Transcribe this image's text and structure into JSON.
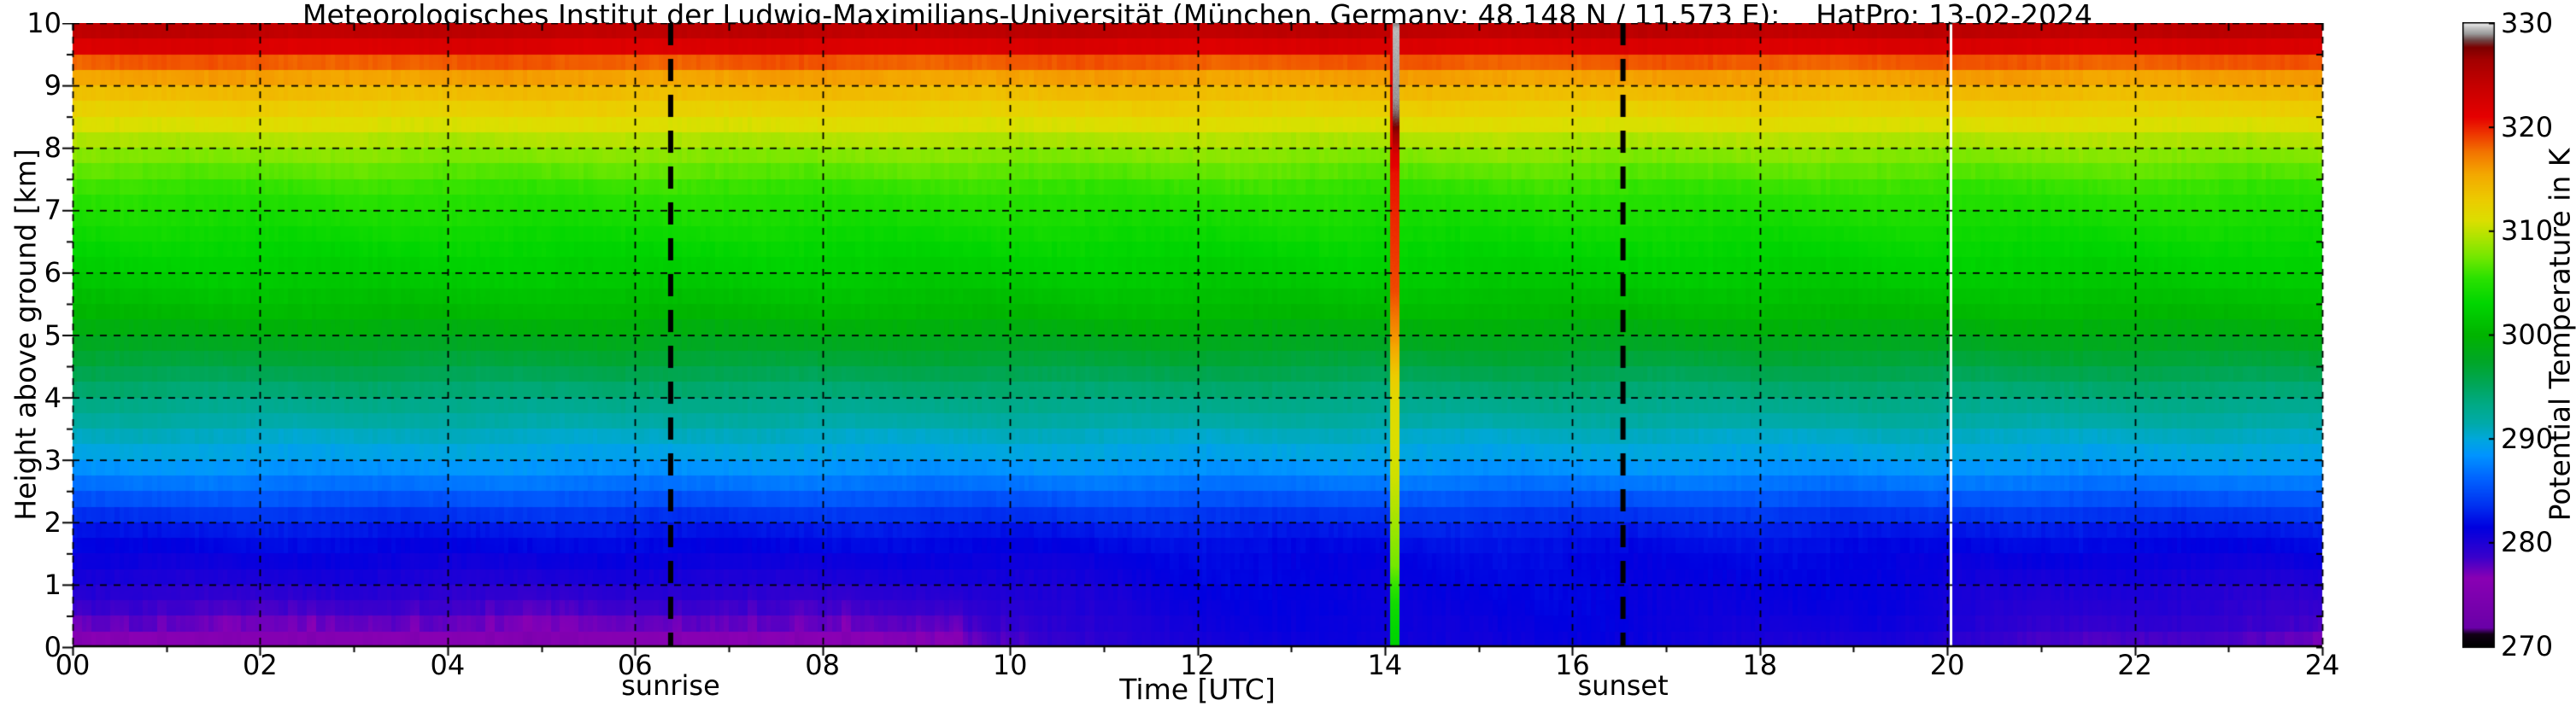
{
  "background": "#ffffff",
  "chart_data": {
    "type": "heatmap",
    "title": "Meteorologisches Institut der Ludwig-Maximilians-Universität (München, Germany; 48.148 N / 11.573 E):    HatPro: 13-02-2024",
    "xlabel": "Time [UTC]",
    "ylabel": "Height above ground [km]",
    "colorbar_label": "Potential Temperature in K",
    "x_range_hours": [
      0,
      24
    ],
    "x_tick_labels": [
      "00",
      "02",
      "04",
      "06",
      "08",
      "10",
      "12",
      "14",
      "16",
      "18",
      "20",
      "22",
      "24"
    ],
    "x_tick_hours": [
      0,
      2,
      4,
      6,
      8,
      10,
      12,
      14,
      16,
      18,
      20,
      22,
      24
    ],
    "x_minor_tick_hours": 1,
    "y_range_km": [
      0,
      10
    ],
    "y_tick_values": [
      0,
      1,
      2,
      3,
      4,
      5,
      6,
      7,
      8,
      9,
      10
    ],
    "y_minor_tick_km": 0.5,
    "grid": {
      "style": "dashed",
      "x_step_hours": 2,
      "y_step_km": 1,
      "color": "#000000"
    },
    "colorbar": {
      "min_K": 270,
      "max_K": 330,
      "tick_values": [
        270,
        280,
        290,
        300,
        310,
        320,
        330
      ],
      "colormap_stops": [
        [
          270.0,
          "#000000"
        ],
        [
          271.2,
          "#120016"
        ],
        [
          271.8,
          "#6a00a8"
        ],
        [
          276.6,
          "#8a00b4"
        ],
        [
          278.6,
          "#3a00cc"
        ],
        [
          281.5,
          "#0000e0"
        ],
        [
          283.5,
          "#0030f0"
        ],
        [
          286.0,
          "#0060ff"
        ],
        [
          288.5,
          "#0096ff"
        ],
        [
          290.0,
          "#00a8dc"
        ],
        [
          291.5,
          "#00aaaa"
        ],
        [
          293.5,
          "#00aa82"
        ],
        [
          295.5,
          "#00a653"
        ],
        [
          297.5,
          "#00a727"
        ],
        [
          300.0,
          "#00b400"
        ],
        [
          303.0,
          "#00d600"
        ],
        [
          305.5,
          "#2ce200"
        ],
        [
          307.5,
          "#74e800"
        ],
        [
          309.5,
          "#b2e400"
        ],
        [
          311.0,
          "#dcdf00"
        ],
        [
          313.0,
          "#eccc00"
        ],
        [
          315.5,
          "#f4a800"
        ],
        [
          317.5,
          "#f37800"
        ],
        [
          319.5,
          "#ee3200"
        ],
        [
          321.0,
          "#e60000"
        ],
        [
          324.0,
          "#c60000"
        ],
        [
          326.5,
          "#a40000"
        ],
        [
          327.7,
          "#7c0000"
        ],
        [
          328.4,
          "#6f4848"
        ],
        [
          329.0,
          "#9a9a9a"
        ],
        [
          329.6,
          "#c6c6c6"
        ],
        [
          330.0,
          "#efefef"
        ]
      ]
    },
    "sun_events": [
      {
        "label": "sunrise",
        "time_utc": 6.38
      },
      {
        "label": "sunset",
        "time_utc": 16.54
      }
    ],
    "field": {
      "time_keyframes_utc": [
        0,
        6.5,
        9,
        10.5,
        12,
        16,
        19.5,
        21,
        24
      ],
      "heights_km": [
        0,
        0.15,
        0.3,
        0.5,
        0.8,
        1,
        1.5,
        2,
        2.2,
        2.5,
        3,
        3.5,
        4,
        4.5,
        5,
        5.3,
        6,
        7,
        7.5,
        8,
        8.3,
        8.6,
        9,
        9.3,
        9.6,
        10
      ],
      "theta_K": [
        [
          275.3,
          276.3,
          277.3,
          278.2,
          279.2,
          280.0,
          281.3,
          282.8,
          284.2,
          286.2,
          289.2,
          291.2,
          293.6,
          296.2,
          298.6,
          300.2,
          302.2,
          304.6,
          306.2,
          308.6,
          310.6,
          312.6,
          314.8,
          317.2,
          321.8,
          325.8
        ],
        [
          275.2,
          276.2,
          277.2,
          278.1,
          279.1,
          279.9,
          281.3,
          282.8,
          284.2,
          286.2,
          289.2,
          291.2,
          293.6,
          296.2,
          298.6,
          300.2,
          302.2,
          304.6,
          306.2,
          308.6,
          310.6,
          312.6,
          314.8,
          317.2,
          321.8,
          325.8
        ],
        [
          276.6,
          277.2,
          277.8,
          278.5,
          279.3,
          280.0,
          281.3,
          282.8,
          284.2,
          286.2,
          289.2,
          291.2,
          293.6,
          296.2,
          298.6,
          300.2,
          302.2,
          304.6,
          306.2,
          308.6,
          310.6,
          312.6,
          314.8,
          317.2,
          321.8,
          325.8
        ],
        [
          278.8,
          279.0,
          279.3,
          279.7,
          280.1,
          280.4,
          281.3,
          282.8,
          284.2,
          286.2,
          289.2,
          291.2,
          293.6,
          296.2,
          298.6,
          300.2,
          302.2,
          304.6,
          306.2,
          308.6,
          310.6,
          312.6,
          314.8,
          317.2,
          321.8,
          325.8
        ],
        [
          280.6,
          280.7,
          280.8,
          281.0,
          281.2,
          281.4,
          281.6,
          282.9,
          284.2,
          286.2,
          289.2,
          291.2,
          293.6,
          296.2,
          298.6,
          300.2,
          302.2,
          304.6,
          306.2,
          308.6,
          310.6,
          312.6,
          314.8,
          317.2,
          321.8,
          325.8
        ],
        [
          281.0,
          281.1,
          281.2,
          281.3,
          281.4,
          281.6,
          281.8,
          283.0,
          284.2,
          286.2,
          289.2,
          291.2,
          293.6,
          296.2,
          298.6,
          300.2,
          302.2,
          304.6,
          306.2,
          308.6,
          310.6,
          312.6,
          314.8,
          317.2,
          321.8,
          325.8
        ],
        [
          279.8,
          280.1,
          280.4,
          280.7,
          281.0,
          281.2,
          281.5,
          282.9,
          284.2,
          286.2,
          289.2,
          291.2,
          293.6,
          296.2,
          298.6,
          300.2,
          302.2,
          304.6,
          306.2,
          308.6,
          310.6,
          312.6,
          314.8,
          317.2,
          321.8,
          325.8
        ],
        [
          278.0,
          278.6,
          279.1,
          279.5,
          279.9,
          280.2,
          281.3,
          282.8,
          284.2,
          286.2,
          289.2,
          291.2,
          293.6,
          296.2,
          298.6,
          300.2,
          302.2,
          304.6,
          306.2,
          308.6,
          310.6,
          312.6,
          314.8,
          317.2,
          321.8,
          325.8
        ],
        [
          277.1,
          277.9,
          278.5,
          279.0,
          279.4,
          279.9,
          281.3,
          282.8,
          284.2,
          286.2,
          289.2,
          291.2,
          293.6,
          296.2,
          298.6,
          300.2,
          302.2,
          304.6,
          306.2,
          308.6,
          310.6,
          312.6,
          314.8,
          317.2,
          321.8,
          325.8
        ]
      ],
      "noise": {
        "streak_amplitude_K": 2.0,
        "streak_until_utc": 9.8,
        "streak_fade_end_utc": 11.4,
        "evening_start_utc": 20.8,
        "evening_level": 0.35,
        "cell_noise_K": 0.35,
        "wobble_K": 0.25,
        "height_bin_km": 0.25,
        "column_minutes": 3
      }
    },
    "anomaly_column": {
      "time_utc": 14.11,
      "width_hours": 0.1,
      "left_edge_cap_K": 321.5,
      "profile_K": [
        [
          0,
          302.5
        ],
        [
          0.7,
          304.0
        ],
        [
          1.3,
          307.5
        ],
        [
          2.0,
          309.0
        ],
        [
          2.7,
          310.5
        ],
        [
          3.9,
          311.5
        ],
        [
          4.35,
          313.0
        ],
        [
          4.9,
          316.0
        ],
        [
          5.3,
          317.5
        ],
        [
          5.7,
          318.8
        ],
        [
          7.6,
          320.5
        ],
        [
          7.9,
          322.0
        ],
        [
          8.1,
          325.5
        ],
        [
          8.35,
          327.8
        ],
        [
          8.55,
          328.6
        ],
        [
          8.8,
          329.0
        ],
        [
          9.9,
          329.4
        ],
        [
          10,
          328.8
        ]
      ]
    },
    "data_gap_column": {
      "time_utc": 20.04,
      "width_hours": 0.027,
      "color": "#ffffff"
    }
  }
}
